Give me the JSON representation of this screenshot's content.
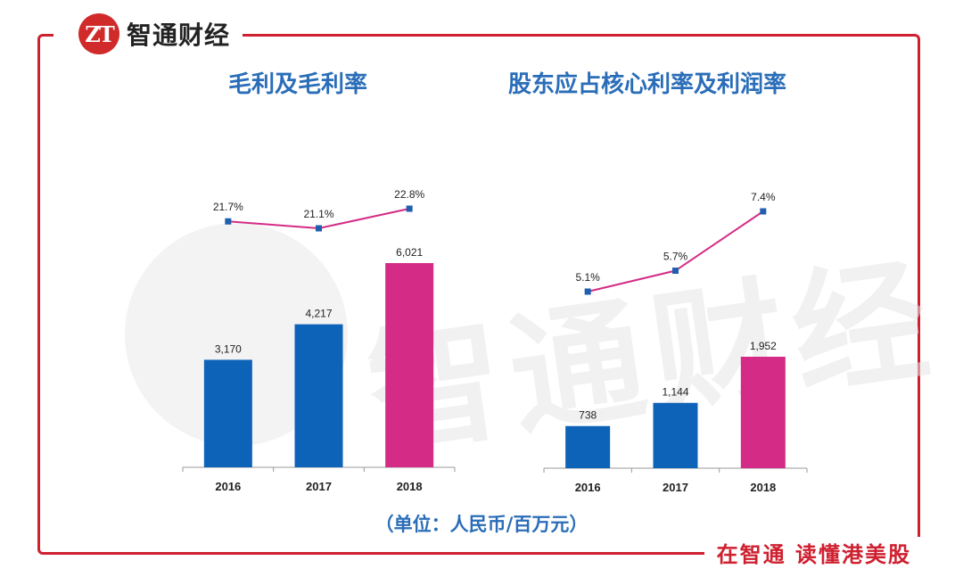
{
  "brand": {
    "name": "智通财经",
    "mark": "ZT",
    "watermark": "智通财经"
  },
  "footer": {
    "unit": "（单位：人民币/百万元）",
    "slogan": "在智通  读懂港美股"
  },
  "colors": {
    "blue": "#0d63b8",
    "pink": "#d42c86",
    "line": "#d42c86",
    "marker": "#1f5fae",
    "frame": "#cf2030",
    "title": "#2a6db8"
  },
  "chart_data": [
    {
      "type": "bar+line",
      "title": "毛利及毛利率",
      "categories": [
        "2016",
        "2017",
        "2018"
      ],
      "bars": {
        "values": [
          3170,
          4217,
          6021
        ],
        "labels": [
          "3,170",
          "4,217",
          "6,021"
        ]
      },
      "line": {
        "values": [
          21.7,
          21.1,
          22.8
        ],
        "labels": [
          "21.7%",
          "21.1%",
          "22.8%"
        ]
      }
    },
    {
      "type": "bar+line",
      "title": "股东应占核心利率及利润率",
      "categories": [
        "2016",
        "2017",
        "2018"
      ],
      "bars": {
        "values": [
          738,
          1144,
          1952
        ],
        "labels": [
          "738",
          "1,144",
          "1,952"
        ]
      },
      "line": {
        "values": [
          5.1,
          5.7,
          7.4
        ],
        "labels": [
          "5.1%",
          "5.7%",
          "7.4%"
        ]
      }
    }
  ]
}
